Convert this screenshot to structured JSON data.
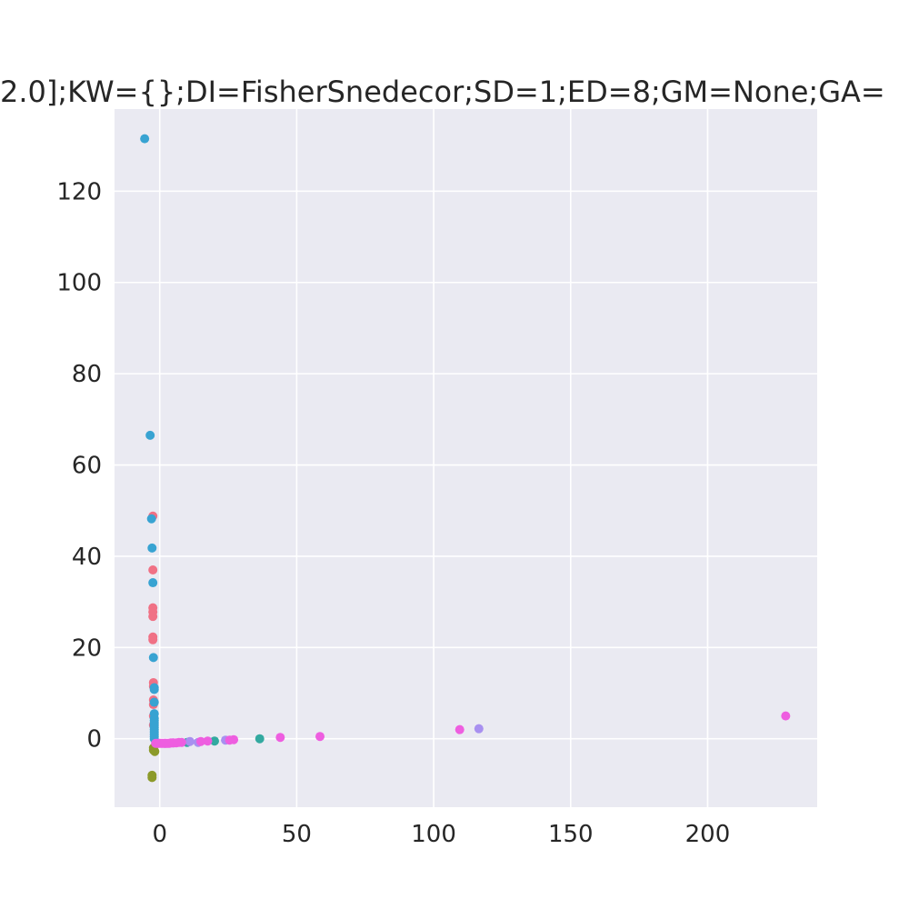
{
  "chart_data": {
    "type": "scatter",
    "title": "2.0];KW={};DI=FisherSnedecor;SD=1;ED=8;GM=None;GA=",
    "xlabel": "",
    "ylabel": "",
    "xlim": [
      -16.5,
      240
    ],
    "ylim": [
      -15,
      138
    ],
    "xticks": [
      0,
      50,
      100,
      150,
      200
    ],
    "yticks": [
      0,
      20,
      40,
      60,
      80,
      100,
      120
    ],
    "xtick_labels": [
      "0",
      "50",
      "100",
      "150",
      "200"
    ],
    "ytick_labels": [
      "0",
      "20",
      "40",
      "60",
      "80",
      "100",
      "120"
    ],
    "grid": true,
    "background": "#eaeaf2",
    "series": [
      {
        "color": "#f07185",
        "points": [
          [
            -2.5,
            48.8
          ],
          [
            -2.5,
            37
          ],
          [
            -2.5,
            28.7
          ],
          [
            -2.5,
            27.8
          ],
          [
            -2.5,
            26.8
          ],
          [
            -2.5,
            22.3
          ],
          [
            -2.5,
            21.7
          ],
          [
            -2.3,
            12.3
          ],
          [
            -2.3,
            11.5
          ],
          [
            -2.3,
            8.5
          ],
          [
            -2.3,
            7.5
          ],
          [
            -2.3,
            5
          ],
          [
            -2.3,
            3
          ]
        ]
      },
      {
        "color": "#8c9a2a",
        "points": [
          [
            -2.8,
            -8
          ],
          [
            -2.8,
            -8.5
          ],
          [
            -2.3,
            -2
          ],
          [
            -2.3,
            -2.5
          ],
          [
            -1.8,
            -2.8
          ]
        ]
      },
      {
        "color": "#33a9a0",
        "points": [
          [
            20,
            -0.5
          ],
          [
            36.5,
            0
          ],
          [
            10,
            -0.8
          ]
        ]
      },
      {
        "color": "#38a3d2",
        "points": [
          [
            -5.5,
            131.5
          ],
          [
            -3.5,
            66.5
          ],
          [
            -3,
            48.2
          ],
          [
            -2.8,
            41.8
          ],
          [
            -2.5,
            34.2
          ],
          [
            -2.3,
            17.8
          ],
          [
            -2,
            11.2
          ],
          [
            -2,
            10.8
          ],
          [
            -2,
            8
          ],
          [
            -2,
            5.5
          ],
          [
            -2,
            4.5
          ],
          [
            -2,
            4
          ],
          [
            -2,
            3.5
          ],
          [
            -2,
            3
          ],
          [
            -2,
            2.5
          ],
          [
            -2,
            2
          ],
          [
            -2,
            1.5
          ],
          [
            -2,
            1
          ],
          [
            -2,
            0.5
          ],
          [
            -2,
            0
          ]
        ]
      },
      {
        "color": "#a890f0",
        "points": [
          [
            116.5,
            2.2
          ],
          [
            11,
            -0.6
          ],
          [
            24,
            -0.3
          ],
          [
            14,
            -0.8
          ],
          [
            5,
            -0.9
          ],
          [
            2,
            -1
          ]
        ]
      },
      {
        "color": "#ee5ee0",
        "points": [
          [
            228.5,
            5
          ],
          [
            109.5,
            2
          ],
          [
            58.5,
            0.5
          ],
          [
            44,
            0.3
          ],
          [
            27,
            -0.2
          ],
          [
            25.5,
            -0.3
          ],
          [
            17.5,
            -0.5
          ],
          [
            15,
            -0.6
          ],
          [
            8,
            -0.8
          ],
          [
            7,
            -0.8
          ],
          [
            6,
            -0.9
          ],
          [
            5,
            -0.9
          ],
          [
            4.5,
            -0.9
          ],
          [
            4,
            -0.9
          ],
          [
            3.5,
            -1
          ],
          [
            3,
            -1
          ],
          [
            2.5,
            -1
          ],
          [
            2,
            -1
          ],
          [
            1.5,
            -1
          ],
          [
            1,
            -1
          ],
          [
            0.5,
            -1
          ],
          [
            0,
            -1
          ],
          [
            -0.5,
            -1
          ],
          [
            -1,
            -1
          ],
          [
            -1.5,
            -1
          ]
        ]
      }
    ]
  }
}
